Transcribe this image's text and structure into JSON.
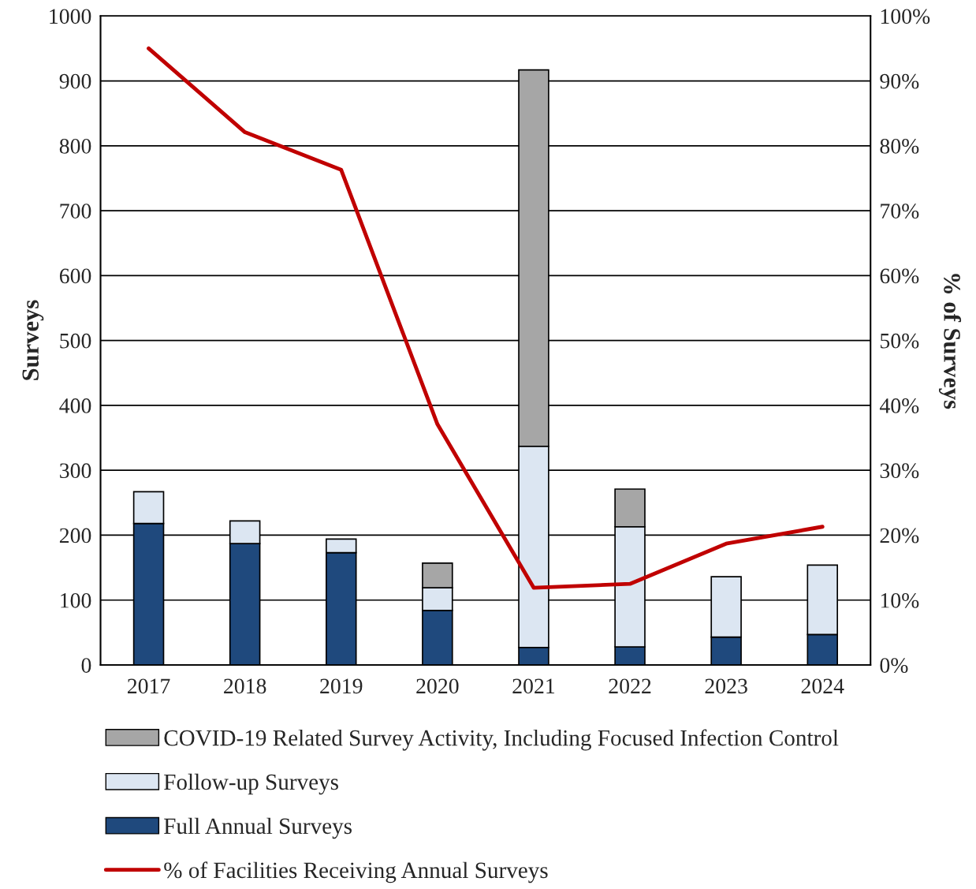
{
  "chart_data": {
    "type": "bar",
    "stacked": true,
    "categories": [
      "2017",
      "2018",
      "2019",
      "2020",
      "2021",
      "2022",
      "2023",
      "2024"
    ],
    "series": [
      {
        "name": "Full Annual Surveys",
        "color": "#1f497d",
        "values": [
          218,
          187,
          173,
          84,
          27,
          28,
          43,
          47
        ]
      },
      {
        "name": "Follow-up Surveys",
        "color": "#dce6f2",
        "values": [
          49,
          35,
          21,
          35,
          310,
          185,
          93,
          107
        ]
      },
      {
        "name": "COVID-19 Related Survey Activity, Including Focused Infection Control",
        "color": "#a6a6a6",
        "values": [
          null,
          null,
          null,
          38,
          580,
          58,
          null,
          null
        ]
      },
      {
        "name": "% of Facilities Receiving Annual Surveys",
        "type": "line",
        "axis": "y2",
        "color": "#c00000",
        "values": [
          95,
          82.1,
          76.3,
          37.1,
          11.9,
          12.5,
          18.7,
          21.3
        ]
      }
    ],
    "ylabel": "Surveys",
    "y2label": "% of Surveys",
    "ylim": [
      0,
      1000
    ],
    "yticks": [
      0,
      100,
      200,
      300,
      400,
      500,
      600,
      700,
      800,
      900,
      1000
    ],
    "y2lim": [
      0,
      100
    ],
    "y2ticks": [
      {
        "value": 0,
        "label": "0%"
      },
      {
        "value": 10,
        "label": "10%"
      },
      {
        "value": 20,
        "label": "20%"
      },
      {
        "value": 30,
        "label": "30%"
      },
      {
        "value": 40,
        "label": "40%"
      },
      {
        "value": 50,
        "label": "50%"
      },
      {
        "value": 60,
        "label": "60%"
      },
      {
        "value": 70,
        "label": "70%"
      },
      {
        "value": 80,
        "label": "80%"
      },
      {
        "value": 90,
        "label": "90%"
      },
      {
        "value": 100,
        "label": "100%"
      }
    ],
    "grid": "y",
    "legend": "bottom",
    "marker": "none",
    "line_style": "solid"
  }
}
